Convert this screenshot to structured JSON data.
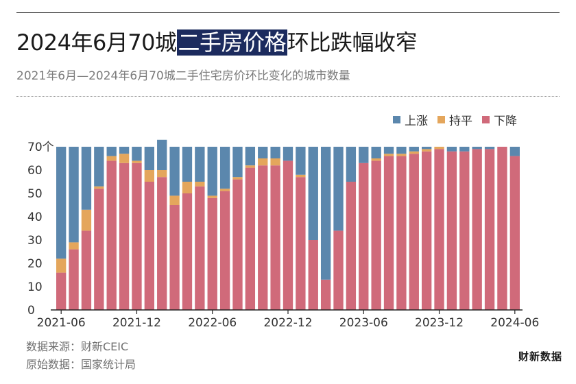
{
  "header": {
    "title_pre": "2024年6月70城",
    "title_highlight": "二手房价格",
    "title_post": "环比跌幅收窄",
    "subtitle": "2021年6月—2024年6月70城二手住宅房价环比变化的城市数量"
  },
  "footer": {
    "source": "数据来源：财新CEIC",
    "raw_data": "原始数据：国家统计局",
    "logo": "财新数据"
  },
  "colors": {
    "up": "#5b87ad",
    "flat": "#e4a65c",
    "down": "#d06a7a"
  },
  "chart_data": {
    "type": "bar",
    "stacked": true,
    "title": "2024年6月70城二手房价格环比跌幅收窄",
    "subtitle": "2021年6月—2024年6月70城二手住宅房价环比变化的城市数量",
    "ylim": [
      0,
      70
    ],
    "yticks": [
      "0",
      "10",
      "20",
      "30",
      "40",
      "50",
      "60",
      "70个"
    ],
    "xtick_labels": [
      {
        "index": 0,
        "label": "2021-06"
      },
      {
        "index": 6,
        "label": "2021-12"
      },
      {
        "index": 12,
        "label": "2022-06"
      },
      {
        "index": 18,
        "label": "2022-12"
      },
      {
        "index": 24,
        "label": "2023-06"
      },
      {
        "index": 30,
        "label": "2023-12"
      },
      {
        "index": 36,
        "label": "2024-06"
      }
    ],
    "legend_position": "top-right",
    "grid": false,
    "series": [
      {
        "name": "上涨",
        "key": "up",
        "values": [
          48,
          41,
          27,
          17,
          4,
          3,
          6,
          10,
          13,
          21,
          15,
          15,
          21,
          18,
          13,
          8,
          5,
          5,
          6,
          12,
          40,
          57,
          36,
          15,
          7,
          5,
          3,
          3,
          2,
          1,
          0,
          2,
          2,
          1,
          1,
          0,
          4
        ]
      },
      {
        "name": "持平",
        "key": "flat",
        "values": [
          6,
          3,
          9,
          1,
          2,
          4,
          1,
          5,
          3,
          4,
          5,
          2,
          1,
          1,
          1,
          1,
          3,
          3,
          0,
          1,
          0,
          0,
          0,
          0,
          0,
          1,
          1,
          1,
          1,
          1,
          1,
          0,
          0,
          0,
          0,
          0,
          0
        ]
      },
      {
        "name": "下降",
        "key": "down",
        "values": [
          16,
          26,
          34,
          52,
          64,
          63,
          63,
          55,
          57,
          45,
          50,
          53,
          48,
          51,
          56,
          61,
          62,
          62,
          64,
          57,
          30,
          13,
          34,
          55,
          63,
          64,
          66,
          66,
          67,
          68,
          69,
          68,
          68,
          69,
          69,
          70,
          66
        ]
      }
    ]
  }
}
